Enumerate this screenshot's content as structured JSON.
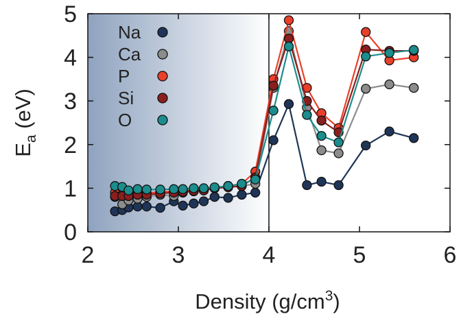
{
  "chart_data": {
    "type": "line",
    "xlabel": "Density (g/cm",
    "xlabel_sup": "3",
    "xlabel_tail": ")",
    "ylabel_main": "E",
    "ylabel_sub": "a",
    "ylabel_tail": " (eV)",
    "xlim": [
      2,
      6
    ],
    "ylim": [
      0,
      5
    ],
    "xticks": [
      "2",
      "3",
      "4",
      "5",
      "6"
    ],
    "yticks": [
      "0",
      "1",
      "2",
      "3",
      "4",
      "5"
    ],
    "shaded_region": [
      2,
      4
    ],
    "vertical_line_x": 4,
    "legend_position": "top-left",
    "series": [
      {
        "name": "Na",
        "color": "#1f3557",
        "x": [
          2.3,
          2.38,
          2.45,
          2.55,
          2.65,
          2.8,
          2.95,
          3.05,
          3.17,
          3.28,
          3.4,
          3.55,
          3.7,
          3.85,
          4.05,
          4.22,
          4.42,
          4.58,
          4.77,
          5.07,
          5.33,
          5.6
        ],
        "y": [
          0.47,
          0.5,
          0.56,
          0.58,
          0.58,
          0.55,
          0.7,
          0.6,
          0.65,
          0.7,
          0.8,
          0.78,
          0.85,
          0.9,
          2.1,
          2.93,
          1.07,
          1.15,
          1.07,
          1.98,
          2.3,
          2.15
        ]
      },
      {
        "name": "Ca",
        "color": "#8c8c8c",
        "x": [
          2.3,
          2.38,
          2.45,
          2.55,
          2.65,
          2.8,
          2.95,
          3.05,
          3.17,
          3.28,
          3.4,
          3.55,
          3.7,
          3.85,
          4.05,
          4.22,
          4.42,
          4.58,
          4.77,
          5.07,
          5.33,
          5.6
        ],
        "y": [
          0.8,
          0.63,
          0.72,
          0.76,
          0.8,
          0.85,
          0.82,
          0.9,
          0.93,
          0.95,
          1.0,
          1.05,
          1.05,
          1.1,
          3.3,
          4.6,
          2.85,
          1.87,
          1.8,
          3.28,
          3.38,
          3.3
        ]
      },
      {
        "name": "P",
        "color": "#e8402a",
        "x": [
          2.3,
          2.38,
          2.45,
          2.55,
          2.65,
          2.8,
          2.95,
          3.05,
          3.17,
          3.28,
          3.4,
          3.55,
          3.7,
          3.85,
          4.05,
          4.22,
          4.42,
          4.58,
          4.77,
          5.07,
          5.33,
          5.6
        ],
        "y": [
          0.9,
          0.85,
          0.9,
          0.88,
          0.88,
          0.92,
          0.92,
          0.95,
          0.95,
          0.95,
          1.0,
          1.05,
          1.1,
          1.38,
          3.5,
          4.85,
          3.3,
          2.72,
          2.38,
          4.58,
          3.93,
          4.0
        ]
      },
      {
        "name": "Si",
        "color": "#8b1f1f",
        "x": [
          2.3,
          2.38,
          2.45,
          2.55,
          2.65,
          2.8,
          2.95,
          3.05,
          3.17,
          3.28,
          3.4,
          3.55,
          3.7,
          3.85,
          4.05,
          4.22,
          4.42,
          4.58,
          4.77,
          5.07,
          5.33,
          5.6
        ],
        "y": [
          0.82,
          0.82,
          0.82,
          0.85,
          0.85,
          0.88,
          0.9,
          0.92,
          0.94,
          0.95,
          1.0,
          1.02,
          1.05,
          1.25,
          3.35,
          4.43,
          3.0,
          2.55,
          2.28,
          4.18,
          4.15,
          4.15
        ]
      },
      {
        "name": "O",
        "color": "#1c8c8c",
        "x": [
          2.3,
          2.38,
          2.45,
          2.55,
          2.65,
          2.8,
          2.95,
          3.05,
          3.17,
          3.28,
          3.4,
          3.55,
          3.7,
          3.85,
          4.05,
          4.22,
          4.42,
          4.58,
          4.77,
          5.07,
          5.33,
          5.6
        ],
        "y": [
          1.05,
          1.03,
          0.95,
          0.98,
          0.97,
          0.97,
          0.98,
          0.98,
          1.0,
          1.0,
          1.02,
          1.05,
          1.1,
          1.2,
          2.78,
          4.25,
          2.68,
          2.2,
          2.05,
          4.02,
          4.1,
          4.17
        ]
      }
    ]
  }
}
